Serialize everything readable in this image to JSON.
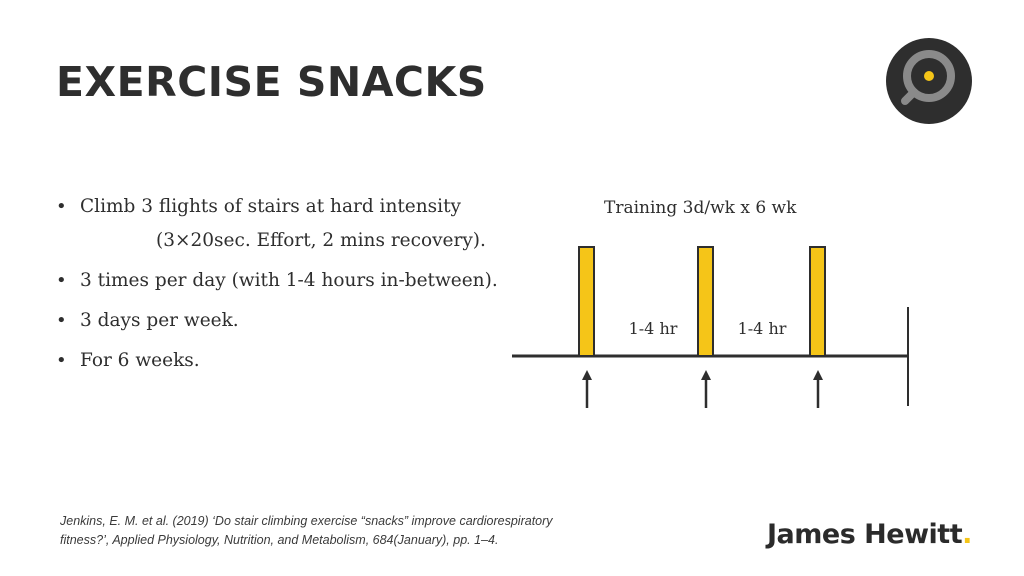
{
  "title": "EXERCISE SNACKS",
  "bullets": [
    "Climb 3 flights of stairs at hard intensity",
    "(3×20sec. Effort, 2 mins recovery).",
    "3 times per day (with 1-4 hours in-between).",
    "3 days per week.",
    "For 6 weeks."
  ],
  "diagram": {
    "title": "Training 3d/wk x 6 wk",
    "gap_labels": [
      "1-4 hr",
      "1-4 hr"
    ],
    "bouts_per_day": 3,
    "bar_color": "#f5c518"
  },
  "citation": "Jenkins, E. M. et al. (2019) ‘Do stair climbing exercise “snacks” improve cardiorespiratory fitness?’, Applied Physiology, Nutrition, and Metabolism, 684(January), pp. 1–4.",
  "brand": {
    "name": "James Hewitt",
    "dot": "."
  },
  "colors": {
    "accent": "#f5c518",
    "text": "#2e2e2e"
  },
  "logo_icon": "target-icon"
}
